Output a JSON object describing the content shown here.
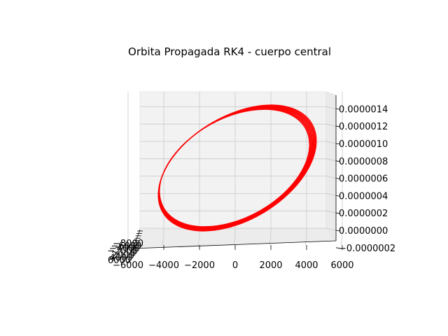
{
  "chart_data": {
    "type": "line",
    "projection": "3d",
    "title": "Orbita Propagada RK4  - cuerpo central",
    "xlabel": "",
    "ylabel": "",
    "zlabel": "",
    "x_ticks": [
      "−6000",
      "−4000",
      "−2000",
      "0",
      "2000",
      "4000",
      "6000"
    ],
    "z_ticks": [
      "−0.0000002",
      "0.0000000",
      "0.0000002",
      "0.0000004",
      "0.0000006",
      "0.0000008",
      "0.0000010",
      "0.0000012",
      "0.0000014"
    ],
    "y_ticks": [
      "−8000",
      "−6000",
      "−4000",
      "−2000",
      "0",
      "2000",
      "4000",
      "6000"
    ],
    "xlim": [
      -7500,
      7500
    ],
    "zlim": [
      -2e-07,
      1.5e-06
    ],
    "grid": true,
    "series": [
      {
        "color": "#ff0000",
        "orbit_count": 10,
        "x_extent": [
          -7000,
          7000
        ],
        "z_extent": [
          -1e-07,
          1.5e-06
        ]
      }
    ]
  }
}
